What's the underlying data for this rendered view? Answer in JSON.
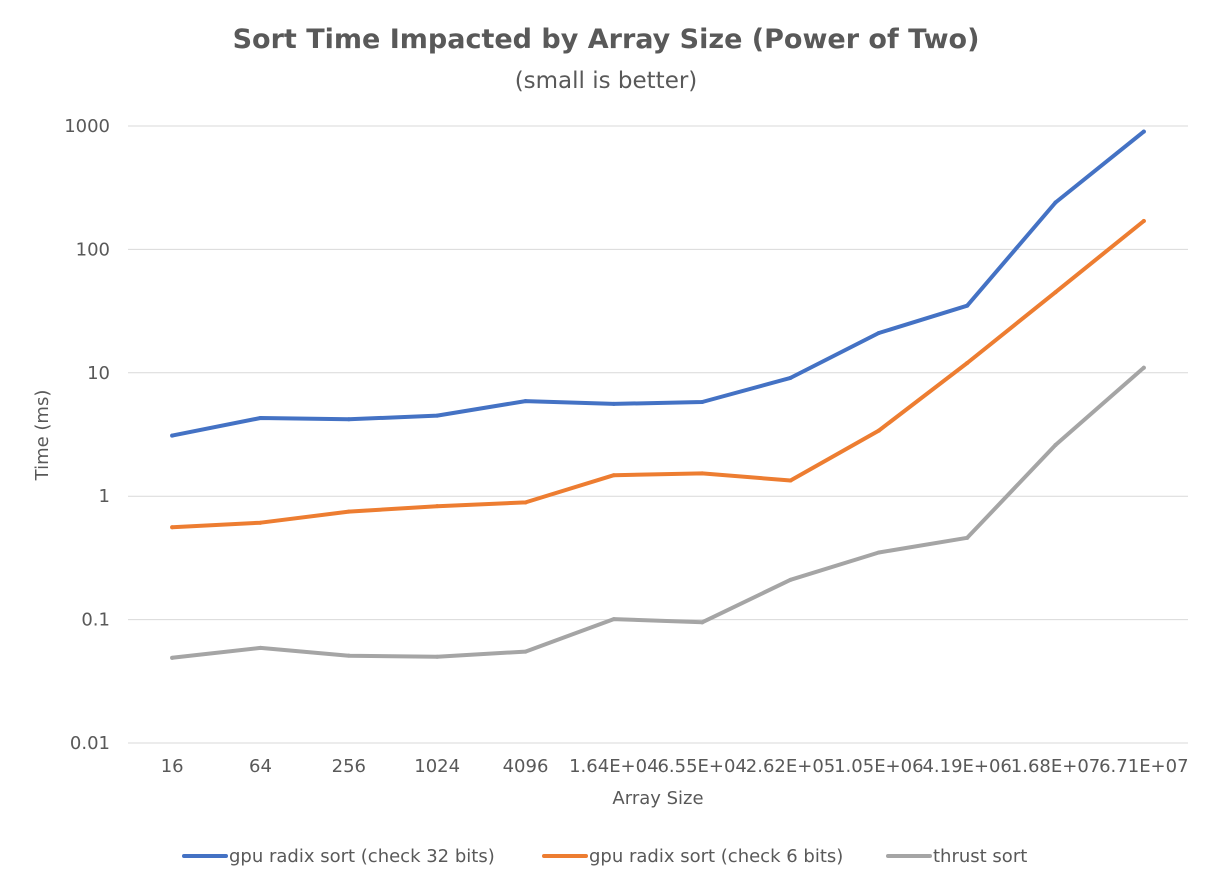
{
  "chart_data": {
    "type": "line",
    "title": "Sort Time Impacted by Array Size (Power of Two)",
    "subtitle": "(small is better)",
    "xlabel": "Array Size",
    "ylabel": "Time (ms)",
    "y_scale": "log",
    "ylim": [
      0.01,
      1000
    ],
    "y_ticks": [
      "0.01",
      "0.1",
      "1",
      "10",
      "100",
      "1000"
    ],
    "y_tick_values": [
      0.01,
      0.1,
      1,
      10,
      100,
      1000
    ],
    "categories": [
      "16",
      "64",
      "256",
      "1024",
      "4096",
      "1.64E+04",
      "6.55E+04",
      "2.62E+05",
      "1.05E+06",
      "4.19E+06",
      "1.68E+07",
      "6.71E+07"
    ],
    "grid": true,
    "legend_position": "bottom",
    "series": [
      {
        "name": "gpu radix sort (check 32 bits)",
        "color": "#4472c4",
        "values": [
          3.1,
          4.3,
          4.2,
          4.5,
          5.9,
          5.6,
          5.8,
          9.1,
          21,
          35,
          240,
          900
        ]
      },
      {
        "name": "gpu radix sort (check 6 bits)",
        "color": "#ed7d31",
        "values": [
          0.56,
          0.61,
          0.75,
          0.83,
          0.89,
          1.48,
          1.53,
          1.34,
          3.4,
          12,
          45,
          170
        ]
      },
      {
        "name": "thrust sort",
        "color": "#a5a5a5",
        "values": [
          0.049,
          0.059,
          0.051,
          0.05,
          0.055,
          0.101,
          0.095,
          0.21,
          0.35,
          0.46,
          2.6,
          11
        ]
      }
    ]
  }
}
